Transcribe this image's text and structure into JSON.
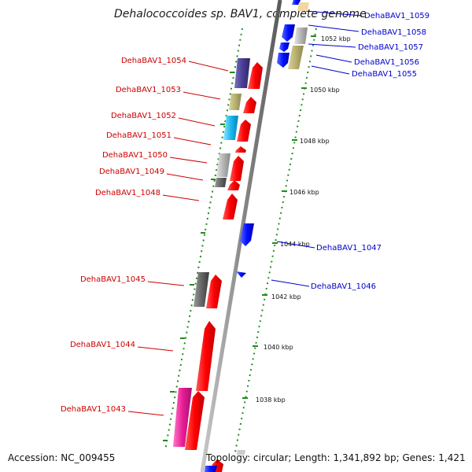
{
  "title": "Dehalococcoides sp. BAV1, complete genome",
  "footer": {
    "accession": "Accession: NC_009455",
    "stats": "Topology: circular; Length: 1,341,892 bp; Genes: 1,421"
  },
  "colors": {
    "backbone": "#8a8a8a",
    "tick": "#1e8c1e",
    "red_label": "#cc0000",
    "blue_label": "#0000cc"
  },
  "ticks": [
    "1052 kbp",
    "1050 kbp",
    "1048 kbp",
    "1046 kbp",
    "1044 kbp",
    "1042 kbp",
    "1040 kbp",
    "1038 kbp"
  ],
  "genes_left": [
    "DehaBAV1_1054",
    "DehaBAV1_1053",
    "DehaBAV1_1052",
    "DehaBAV1_1051",
    "DehaBAV1_1050",
    "DehaBAV1_1049",
    "DehaBAV1_1048",
    "DehaBAV1_1045",
    "DehaBAV1_1044",
    "DehaBAV1_1043"
  ],
  "genes_right": [
    "DehaBAV1_1059",
    "DehaBAV1_1058",
    "DehaBAV1_1057",
    "DehaBAV1_1056",
    "DehaBAV1_1055",
    "DehaBAV1_1047",
    "DehaBAV1_1046"
  ]
}
